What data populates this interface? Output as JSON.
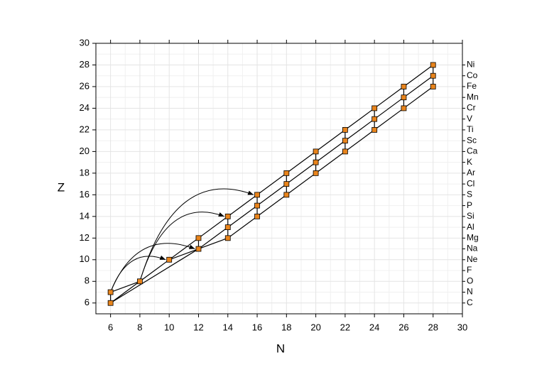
{
  "chart_data": {
    "type": "network",
    "xlabel": "N",
    "ylabel": "Z",
    "xlim": [
      5,
      30
    ],
    "ylim": [
      5,
      30
    ],
    "xticks": [
      6,
      8,
      10,
      12,
      14,
      16,
      18,
      20,
      22,
      24,
      26,
      28,
      30
    ],
    "yticks": [
      6,
      8,
      10,
      12,
      14,
      16,
      18,
      20,
      22,
      24,
      26,
      28,
      30
    ],
    "y2lim": [
      5,
      30
    ],
    "y2ticks": [
      {
        "value": 6,
        "label": "C"
      },
      {
        "value": 7,
        "label": "N"
      },
      {
        "value": 8,
        "label": "O"
      },
      {
        "value": 9,
        "label": "F"
      },
      {
        "value": 10,
        "label": "Ne"
      },
      {
        "value": 11,
        "label": "Na"
      },
      {
        "value": 12,
        "label": "Mg"
      },
      {
        "value": 13,
        "label": "Al"
      },
      {
        "value": 14,
        "label": "Si"
      },
      {
        "value": 15,
        "label": "P"
      },
      {
        "value": 16,
        "label": "S"
      },
      {
        "value": 17,
        "label": "Cl"
      },
      {
        "value": 18,
        "label": "Ar"
      },
      {
        "value": 19,
        "label": "K"
      },
      {
        "value": 20,
        "label": "Ca"
      },
      {
        "value": 21,
        "label": "Sc"
      },
      {
        "value": 22,
        "label": "Ti"
      },
      {
        "value": 23,
        "label": "V"
      },
      {
        "value": 24,
        "label": "Cr"
      },
      {
        "value": 25,
        "label": "Mn"
      },
      {
        "value": 26,
        "label": "Fe"
      },
      {
        "value": 27,
        "label": "Co"
      },
      {
        "value": 28,
        "label": "Ni"
      }
    ],
    "grid": true,
    "minor_grid": true,
    "line_color": "#000000",
    "lines": [
      {
        "x": [
          6,
          8,
          10,
          12,
          14,
          16,
          18,
          20,
          22,
          24,
          26,
          28
        ],
        "y": [
          7,
          8,
          10,
          12,
          14,
          16,
          18,
          20,
          22,
          24,
          26,
          28
        ]
      },
      {
        "x": [
          6,
          8
        ],
        "y": [
          6,
          8
        ]
      },
      {
        "x": [
          10,
          12,
          14,
          16,
          18,
          20,
          22,
          24,
          26,
          28
        ],
        "y": [
          10,
          11,
          13,
          15,
          17,
          19,
          21,
          23,
          25,
          27
        ]
      },
      {
        "x": [
          6,
          12,
          14,
          16,
          18,
          20,
          22,
          24,
          26,
          28
        ],
        "y": [
          6,
          11,
          12,
          14,
          16,
          18,
          20,
          22,
          24,
          26
        ]
      },
      {
        "x": [
          6,
          6
        ],
        "y": [
          6,
          7
        ]
      },
      {
        "x": [
          12,
          12
        ],
        "y": [
          11,
          12
        ]
      },
      {
        "x": [
          14,
          14
        ],
        "y": [
          12,
          14
        ]
      },
      {
        "x": [
          16,
          16
        ],
        "y": [
          14,
          16
        ]
      },
      {
        "x": [
          18,
          18
        ],
        "y": [
          16,
          18
        ]
      },
      {
        "x": [
          20,
          20
        ],
        "y": [
          18,
          20
        ]
      },
      {
        "x": [
          22,
          22
        ],
        "y": [
          20,
          22
        ]
      },
      {
        "x": [
          24,
          24
        ],
        "y": [
          22,
          24
        ]
      },
      {
        "x": [
          26,
          26
        ],
        "y": [
          24,
          26
        ]
      },
      {
        "x": [
          28,
          28
        ],
        "y": [
          26,
          28
        ]
      }
    ],
    "arrows": [
      {
        "from": [
          6,
          7
        ],
        "to": [
          10,
          10
        ]
      },
      {
        "from": [
          6,
          7
        ],
        "to": [
          12,
          11
        ]
      },
      {
        "from": [
          8,
          8
        ],
        "to": [
          14,
          14
        ]
      },
      {
        "from": [
          8,
          8
        ],
        "to": [
          16,
          16
        ]
      }
    ],
    "point_color": "#e8841c",
    "points": {
      "x": [
        6,
        6,
        8,
        10,
        12,
        12,
        14,
        14,
        14,
        16,
        16,
        16,
        18,
        18,
        18,
        20,
        20,
        20,
        22,
        22,
        22,
        24,
        24,
        24,
        26,
        26,
        26,
        28,
        28,
        28
      ],
      "y": [
        6,
        7,
        8,
        10,
        11,
        12,
        12,
        13,
        14,
        14,
        15,
        16,
        16,
        17,
        18,
        18,
        19,
        20,
        20,
        21,
        22,
        22,
        23,
        24,
        24,
        25,
        26,
        26,
        27,
        28
      ]
    }
  }
}
